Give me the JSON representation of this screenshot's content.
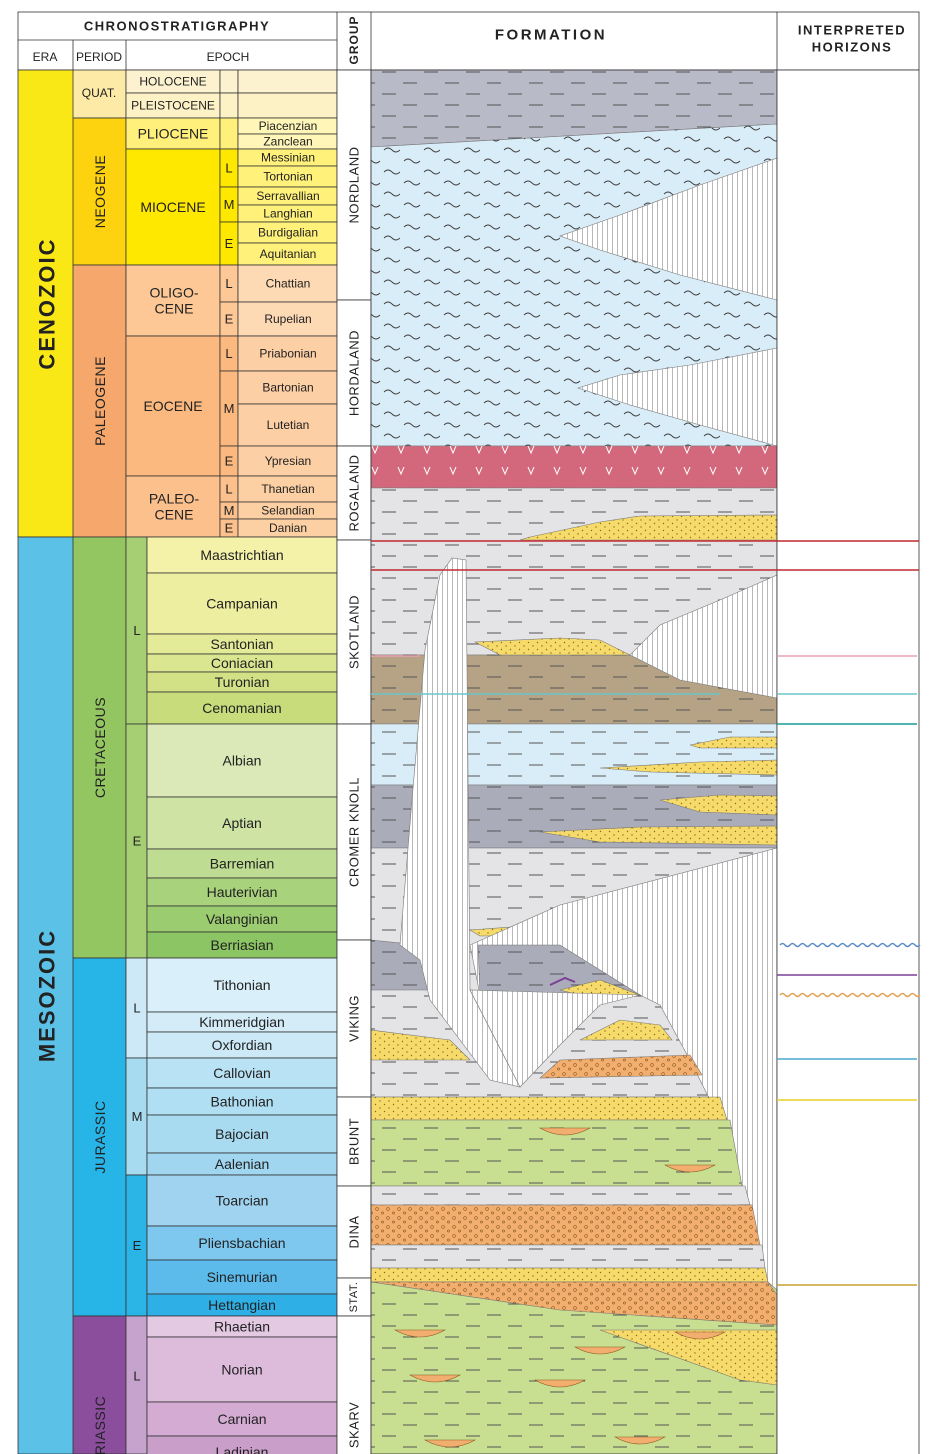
{
  "header": {
    "chronostratigraphy": "CHRONOSTRATIGRAPHY",
    "era": "ERA",
    "period": "PERIOD",
    "epoch": "EPOCH",
    "group": "GROUP",
    "formation": "FORMATION",
    "horizons": [
      "INTERPRETED",
      "HORIZONS"
    ]
  },
  "eras": [
    "CENOZOIC",
    "MESOZOIC"
  ],
  "periods": [
    "QUAT.",
    "NEOGENE",
    "PALEOGENE",
    "CRETACEOUS",
    "JURASSIC",
    "TRIASSIC"
  ],
  "epochs": [
    "HOLOCENE",
    "PLEISTOCENE",
    "PLIOCENE",
    "MIOCENE",
    [
      "OLIGO-",
      "CENE"
    ],
    "EOCENE",
    [
      "PALEO-",
      "CENE"
    ]
  ],
  "subepochs": [
    "L",
    "M",
    "E",
    "L",
    "E",
    "L",
    "M",
    "E",
    "L",
    "M",
    "E",
    "L",
    "E",
    "L",
    "M",
    "E",
    "L"
  ],
  "stages": [
    "Piacenzian",
    "Zanclean",
    "Messinian",
    "Tortonian",
    "Serravallian",
    "Langhian",
    "Burdigalian",
    "Aquitanian",
    "Chattian",
    "Rupelian",
    "Priabonian",
    "Bartonian",
    "Lutetian",
    "Ypresian",
    "Thanetian",
    "Selandian",
    "Danian",
    "Maastrichtian",
    "Campanian",
    "Santonian",
    "Coniacian",
    "Turonian",
    "Cenomanian",
    "Albian",
    "Aptian",
    "Barremian",
    "Hauterivian",
    "Valanginian",
    "Berriasian",
    "Tithonian",
    "Kimmeridgian",
    "Oxfordian",
    "Callovian",
    "Bathonian",
    "Bajocian",
    "Aalenian",
    "Toarcian",
    "Pliensbachian",
    "Sinemurian",
    "Hettangian",
    "Rhaetian",
    "Norian",
    "Carnian",
    "Ladinian"
  ],
  "groups": [
    "NORDLAND",
    "HORDALAND",
    "ROGALAND",
    "SKOTLAND",
    "CROMER KNOLL",
    "VIKING",
    "BRUNT",
    "DINA",
    "STAT.",
    "SKARV"
  ]
}
